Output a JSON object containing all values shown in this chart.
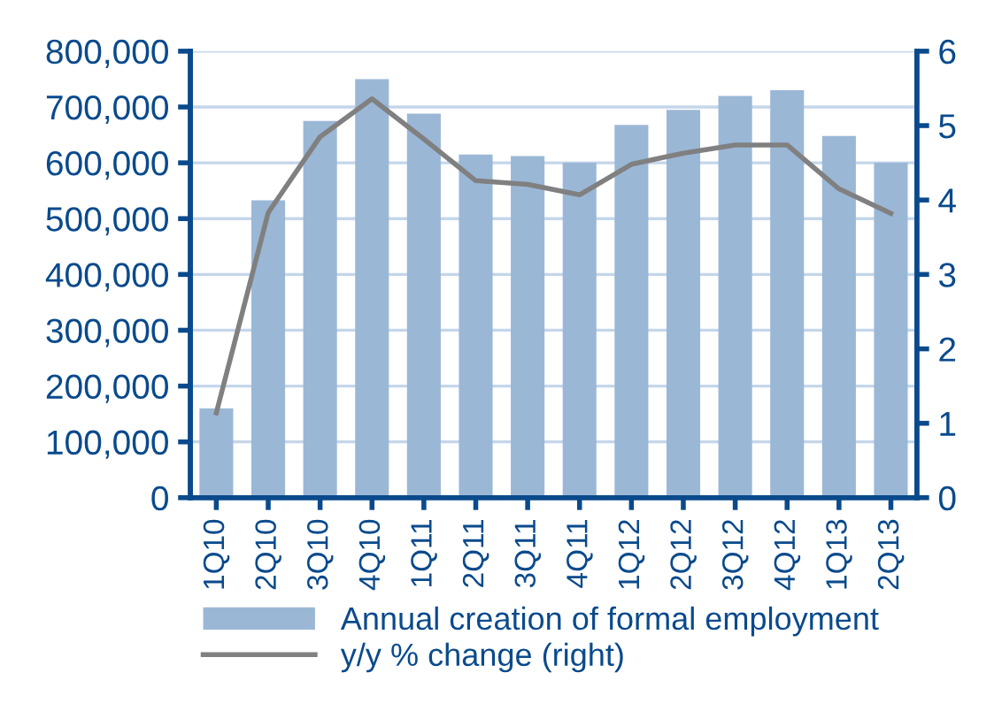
{
  "chart_data": {
    "type": "bar",
    "categories": [
      "1Q10",
      "2Q10",
      "3Q10",
      "4Q10",
      "1Q11",
      "2Q11",
      "3Q11",
      "4Q11",
      "1Q12",
      "2Q12",
      "3Q12",
      "4Q12",
      "1Q13",
      "2Q13"
    ],
    "series": [
      {
        "name": "Annual creation of formal employment",
        "color": "#9bb7d6",
        "values": [
          160000,
          533000,
          675000,
          750000,
          688000,
          615000,
          612000,
          600000,
          668000,
          695000,
          720000,
          730000,
          648000,
          600000
        ]
      },
      {
        "name": "y/y % change (right)",
        "type": "line",
        "axis": "y2",
        "color": "#808080",
        "values": [
          1.14,
          3.83,
          4.85,
          5.36,
          4.82,
          4.26,
          4.21,
          4.07,
          4.48,
          4.63,
          4.74,
          4.74,
          4.15,
          3.82
        ]
      }
    ],
    "ylim": [
      0,
      800000
    ],
    "yticks": [
      {
        "value": 0,
        "label": "0"
      },
      {
        "value": 100000,
        "label": "100,000"
      },
      {
        "value": 200000,
        "label": "200,000"
      },
      {
        "value": 300000,
        "label": "300,000"
      },
      {
        "value": 400000,
        "label": "400,000"
      },
      {
        "value": 500000,
        "label": "500,000"
      },
      {
        "value": 600000,
        "label": "600,000"
      },
      {
        "value": 700000,
        "label": "700,000"
      },
      {
        "value": 800000,
        "label": "800,000"
      }
    ],
    "y2lim": [
      0,
      6
    ],
    "y2ticks": [
      0,
      1,
      2,
      3,
      4,
      5,
      6
    ],
    "grid": "y",
    "legend": "bottom",
    "marker": "none",
    "line_style": "solid"
  }
}
